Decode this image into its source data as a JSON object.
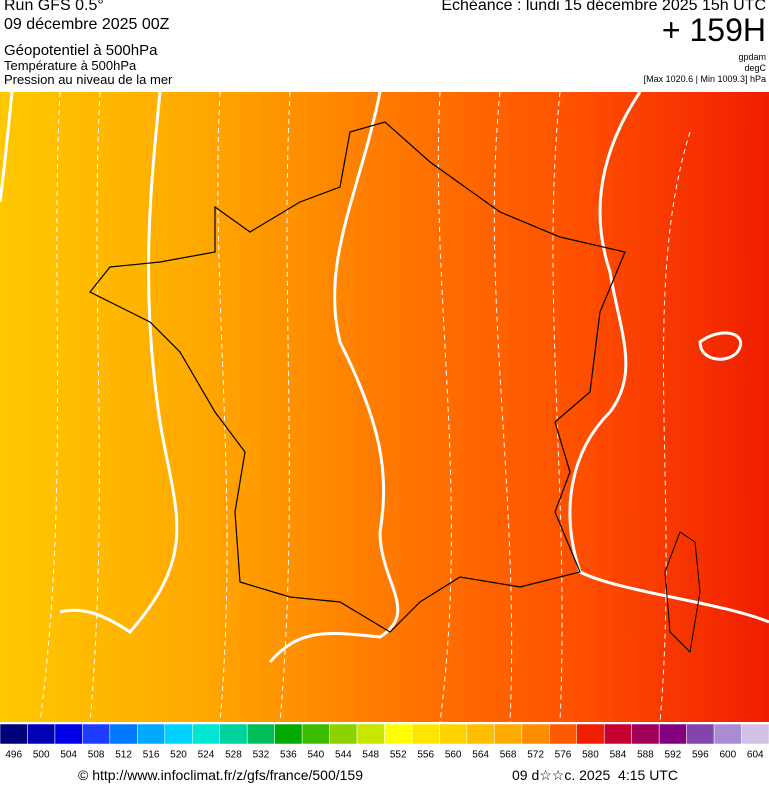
{
  "header": {
    "run": "Run GFS 0.5°",
    "run_date": "09 décembre 2025 00Z",
    "layer1": "Géopotentiel à 500hPa",
    "layer2": "Température à 500hPa",
    "layer3": "Pression au niveau de la mer",
    "valid": "Echéance : lundi 15 décembre 2025 15h UTC",
    "lead": "+ 159H",
    "unit1": "gpdam",
    "unit2": "degC",
    "pressure_range": "[Max 1020.6 | Min 1009.3] hPa"
  },
  "legend": {
    "ticks": [
      496,
      500,
      504,
      508,
      512,
      516,
      520,
      524,
      528,
      532,
      536,
      540,
      544,
      548,
      552,
      556,
      560,
      564,
      568,
      572,
      576,
      580,
      584,
      588,
      592,
      596,
      600,
      604
    ],
    "colors": [
      "#00007a",
      "#0000b4",
      "#0000e6",
      "#1e3cff",
      "#0078ff",
      "#00aaff",
      "#00d2ff",
      "#00e6d2",
      "#00d29b",
      "#00be5a",
      "#00aa00",
      "#3cbe00",
      "#8cd200",
      "#c8e600",
      "#ffff00",
      "#ffe600",
      "#ffd200",
      "#ffbe00",
      "#ffaa00",
      "#ff8c00",
      "#ff5a00",
      "#f01e00",
      "#c80032",
      "#a0005a",
      "#82007d",
      "#8246aa",
      "#aa8cd2",
      "#d2c3e6"
    ]
  },
  "footer": {
    "url": "© http://www.infoclimat.fr/z/gfs/france/500/159",
    "generated": "09 d☆☆c. 2025  4:15 UTC"
  }
}
